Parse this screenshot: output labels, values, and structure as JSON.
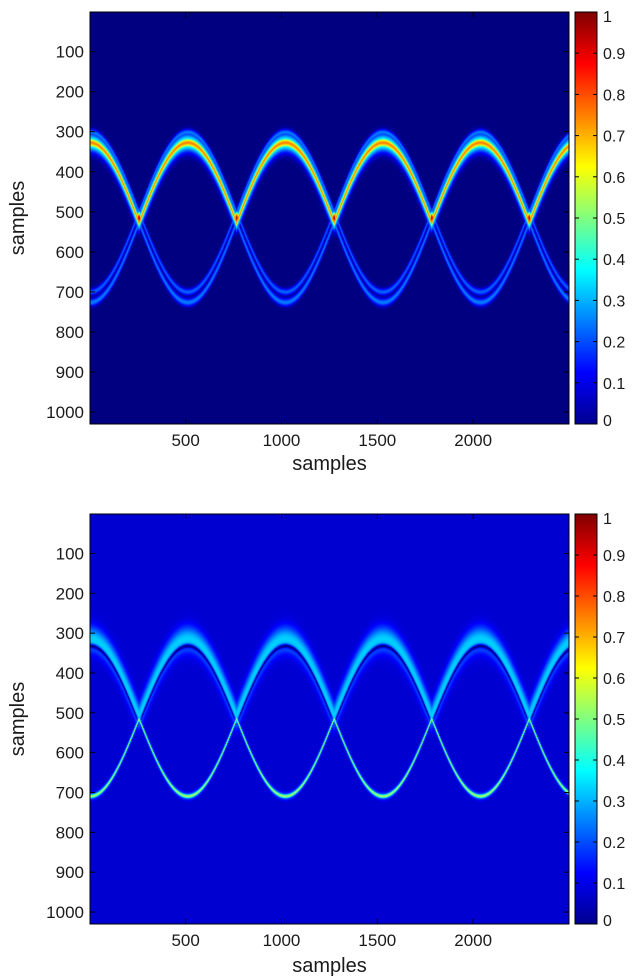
{
  "chart_data": [
    {
      "type": "heatmap",
      "xlabel": "samples",
      "ylabel": "samples",
      "xlim": [
        1,
        2500
      ],
      "ylim": [
        1,
        1030
      ],
      "y_reversed": true,
      "x_ticks": [
        500,
        1000,
        1500,
        2000
      ],
      "x_tick_labels": [
        "500",
        "1000",
        "1500",
        "2000"
      ],
      "y_ticks": [
        100,
        200,
        300,
        400,
        500,
        600,
        700,
        800,
        900,
        1000
      ],
      "y_tick_labels": [
        "100",
        "200",
        "300",
        "400",
        "500",
        "600",
        "700",
        "800",
        "900",
        "1000"
      ],
      "colorscale": "jet",
      "clim": [
        0,
        1
      ],
      "colorbar_ticks": [
        0,
        0.1,
        0.2,
        0.3,
        0.4,
        0.5,
        0.6,
        0.7,
        0.8,
        0.9,
        1
      ],
      "colorbar_tick_labels": [
        "0",
        "0.1",
        "0.2",
        "0.3",
        "0.4",
        "0.5",
        "0.6",
        "0.7",
        "0.8",
        "0.9",
        "1"
      ],
      "background_value": 0,
      "structure": {
        "curves": "two sinusoidal bands in anti-phase, each split into a main and a weaker companion ridge",
        "center_row": 515,
        "amplitude_rows": 200,
        "period_samples": 1020,
        "crossings_x": [
          255,
          765,
          1275,
          1785,
          2295
        ],
        "crossing_intensity": 1.0,
        "main_ridge_intensity": 0.75,
        "companion_ridge_intensity": 0.25
      }
    },
    {
      "type": "heatmap",
      "xlabel": "samples",
      "ylabel": "samples",
      "xlim": [
        1,
        2500
      ],
      "ylim": [
        1,
        1030
      ],
      "y_reversed": true,
      "x_ticks": [
        500,
        1000,
        1500,
        2000
      ],
      "x_tick_labels": [
        "500",
        "1000",
        "1500",
        "2000"
      ],
      "y_ticks": [
        100,
        200,
        300,
        400,
        500,
        600,
        700,
        800,
        900,
        1000
      ],
      "y_tick_labels": [
        "100",
        "200",
        "300",
        "400",
        "500",
        "600",
        "700",
        "800",
        "900",
        "1000"
      ],
      "colorscale": "jet",
      "clim": [
        0,
        1
      ],
      "colorbar_ticks": [
        0,
        0.1,
        0.2,
        0.3,
        0.4,
        0.5,
        0.6,
        0.7,
        0.8,
        0.9,
        1
      ],
      "colorbar_tick_labels": [
        "0",
        "0.1",
        "0.2",
        "0.3",
        "0.4",
        "0.5",
        "0.6",
        "0.7",
        "0.8",
        "0.9",
        "1"
      ],
      "background_value": 0.08,
      "structure": {
        "curves": "two sinusoidal bands in anti-phase: a thin bright ridge and a broad faint halo with a dark core",
        "center_row": 515,
        "amplitude_rows": 195,
        "period_samples": 1020,
        "crossings_x": [
          255,
          765,
          1275,
          1785,
          2295
        ],
        "thin_ridge_intensity": 0.55,
        "halo_intensity": 0.25,
        "dark_core_intensity": 0.0
      }
    }
  ]
}
